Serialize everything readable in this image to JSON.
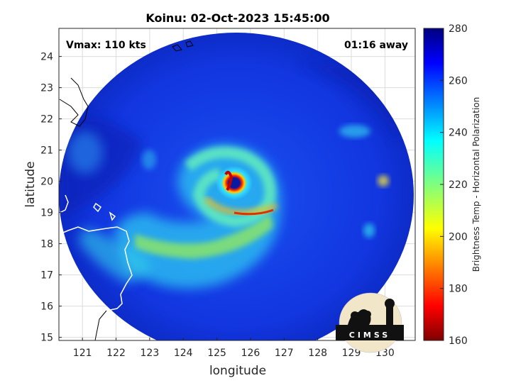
{
  "title": "Koinu: 02-Oct-2023 15:45:00",
  "vmax_label": "Vmax: 110 kts",
  "time_label": "01:16 away",
  "xlabel": "longitude",
  "ylabel": "latitude",
  "colorbar_label": "Brightness Temp - Horizontal Polarization",
  "logo_text": "CIMSS",
  "x_ticks": [
    "121",
    "122",
    "123",
    "124",
    "125",
    "126",
    "127",
    "128",
    "129",
    "130"
  ],
  "y_ticks": [
    "24",
    "23",
    "22",
    "21",
    "20",
    "19",
    "18",
    "17",
    "16",
    "15"
  ],
  "colorbar_ticks": [
    "280",
    "260",
    "240",
    "220",
    "200",
    "180",
    "160"
  ],
  "chart_data": {
    "type": "heatmap",
    "xlim": [
      120.3,
      130.9
    ],
    "ylim": [
      14.9,
      24.9
    ],
    "colorbar_range": [
      160,
      280
    ],
    "grid": true,
    "storm_center": {
      "lon": 125.4,
      "lat": 19.95
    }
  }
}
